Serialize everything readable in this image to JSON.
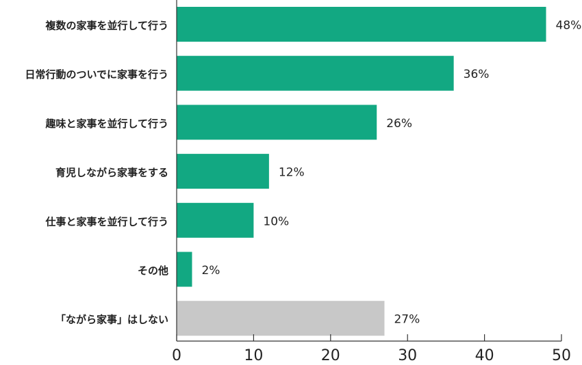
{
  "chart_data": {
    "type": "bar",
    "orientation": "horizontal",
    "categories": [
      "複数の家事を並行して行う",
      "日常行動のついでに家事を行う",
      "趣味と家事を並行して行う",
      "育児しながら家事をする",
      "仕事と家事を並行して行う",
      "その他",
      "「ながら家事」はしない"
    ],
    "values": [
      48,
      36,
      26,
      12,
      10,
      2,
      27
    ],
    "value_labels": [
      "48%",
      "36%",
      "26%",
      "12%",
      "10%",
      "2%",
      "27%"
    ],
    "bar_colors": [
      "#12a882",
      "#12a882",
      "#12a882",
      "#12a882",
      "#12a882",
      "#12a882",
      "#c8c8c8"
    ],
    "xlim": [
      0,
      50
    ],
    "xticks": [
      "0",
      "10",
      "20",
      "30",
      "40",
      "50"
    ],
    "title": "",
    "xlabel": "",
    "ylabel": "",
    "grid": false
  }
}
